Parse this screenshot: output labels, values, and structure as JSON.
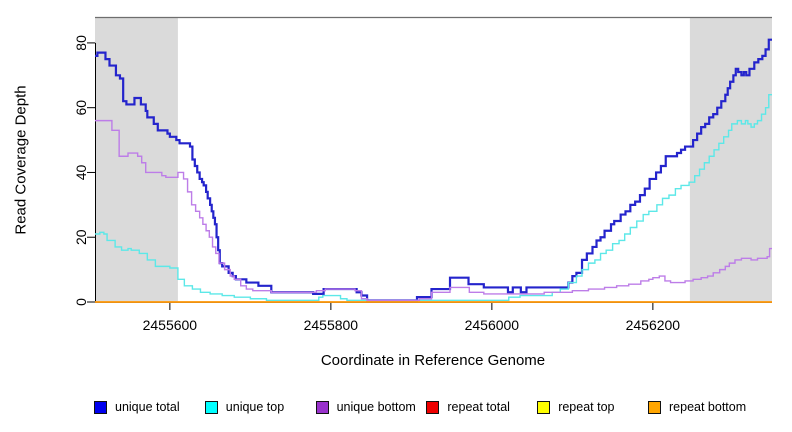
{
  "chart_data": {
    "type": "line",
    "subtype": "step-after-coverage-plot",
    "title": "",
    "xlabel": "Coordinate in Reference Genome",
    "ylabel": "Read Coverage Depth",
    "xlim": [
      2455507,
      2456348
    ],
    "ylim": [
      0,
      88
    ],
    "x_ticks": [
      2455600,
      2455800,
      2456000,
      2456200
    ],
    "y_ticks": [
      0,
      20,
      40,
      60,
      80
    ],
    "grid": false,
    "legend_position": "bottom",
    "shaded_regions": [
      {
        "from": 2455507,
        "to": 2455610,
        "color": "#dadada"
      },
      {
        "from": 2456246,
        "to": 2456348,
        "color": "#dadada"
      }
    ],
    "series": [
      {
        "name": "unique total",
        "swatch": "#0000ee",
        "line_color": "#2424cc",
        "line_width": 2.2,
        "points": [
          [
            2455507,
            76
          ],
          [
            2455510,
            77
          ],
          [
            2455520,
            75
          ],
          [
            2455525,
            73
          ],
          [
            2455533,
            70
          ],
          [
            2455538,
            69
          ],
          [
            2455542,
            62
          ],
          [
            2455546,
            61
          ],
          [
            2455556,
            63
          ],
          [
            2455564,
            61
          ],
          [
            2455570,
            59
          ],
          [
            2455572,
            57
          ],
          [
            2455580,
            55
          ],
          [
            2455585,
            53
          ],
          [
            2455597,
            52
          ],
          [
            2455600,
            51
          ],
          [
            2455608,
            50
          ],
          [
            2455612,
            49
          ],
          [
            2455625,
            48
          ],
          [
            2455628,
            44
          ],
          [
            2455631,
            42
          ],
          [
            2455634,
            40
          ],
          [
            2455637,
            38
          ],
          [
            2455640,
            37
          ],
          [
            2455642,
            36
          ],
          [
            2455645,
            34
          ],
          [
            2455647,
            32
          ],
          [
            2455650,
            30
          ],
          [
            2455652,
            28
          ],
          [
            2455654,
            26
          ],
          [
            2455656,
            24
          ],
          [
            2455658,
            20
          ],
          [
            2455660,
            16
          ],
          [
            2455662,
            12
          ],
          [
            2455665,
            11
          ],
          [
            2455673,
            9
          ],
          [
            2455678,
            8
          ],
          [
            2455682,
            7
          ],
          [
            2455695,
            6
          ],
          [
            2455710,
            5
          ],
          [
            2455726,
            3
          ],
          [
            2455778,
            2.5
          ],
          [
            2455791,
            4
          ],
          [
            2455832,
            3
          ],
          [
            2455838,
            2
          ],
          [
            2455845,
            0.5
          ],
          [
            2455907,
            1.5
          ],
          [
            2455925,
            4
          ],
          [
            2455948,
            7.5
          ],
          [
            2455971,
            5.5
          ],
          [
            2455990,
            4.5
          ],
          [
            2456020,
            3
          ],
          [
            2456026,
            4.5
          ],
          [
            2456036,
            3
          ],
          [
            2456043,
            4.5
          ],
          [
            2456095,
            6
          ],
          [
            2456100,
            8
          ],
          [
            2456105,
            9
          ],
          [
            2456112,
            13
          ],
          [
            2456118,
            15
          ],
          [
            2456125,
            17
          ],
          [
            2456130,
            19
          ],
          [
            2456135,
            20
          ],
          [
            2456140,
            22
          ],
          [
            2456148,
            24
          ],
          [
            2456152,
            25
          ],
          [
            2456160,
            27
          ],
          [
            2456166,
            28
          ],
          [
            2456172,
            30
          ],
          [
            2456178,
            31
          ],
          [
            2456184,
            33
          ],
          [
            2456190,
            35
          ],
          [
            2456196,
            38
          ],
          [
            2456204,
            40
          ],
          [
            2456210,
            42
          ],
          [
            2456216,
            45
          ],
          [
            2456230,
            46
          ],
          [
            2456235,
            47
          ],
          [
            2456240,
            48
          ],
          [
            2456250,
            50
          ],
          [
            2456255,
            52
          ],
          [
            2456260,
            54
          ],
          [
            2456265,
            55
          ],
          [
            2456270,
            57
          ],
          [
            2456275,
            58
          ],
          [
            2456280,
            60
          ],
          [
            2456285,
            62
          ],
          [
            2456290,
            64
          ],
          [
            2456293,
            66
          ],
          [
            2456296,
            68
          ],
          [
            2456300,
            70
          ],
          [
            2456303,
            72
          ],
          [
            2456306,
            71
          ],
          [
            2456310,
            70
          ],
          [
            2456313,
            71
          ],
          [
            2456316,
            70
          ],
          [
            2456320,
            72
          ],
          [
            2456326,
            74
          ],
          [
            2456331,
            75
          ],
          [
            2456336,
            76
          ],
          [
            2456340,
            78
          ],
          [
            2456344,
            81
          ]
        ]
      },
      {
        "name": "unique top",
        "swatch": "#00ffff",
        "line_color": "#5ce8e8",
        "line_width": 1.4,
        "points": [
          [
            2455507,
            21
          ],
          [
            2455513,
            21.5
          ],
          [
            2455518,
            21
          ],
          [
            2455522,
            19
          ],
          [
            2455532,
            17
          ],
          [
            2455540,
            16
          ],
          [
            2455548,
            16.5
          ],
          [
            2455552,
            16
          ],
          [
            2455562,
            15
          ],
          [
            2455572,
            13
          ],
          [
            2455582,
            11
          ],
          [
            2455600,
            10.5
          ],
          [
            2455610,
            7
          ],
          [
            2455618,
            5
          ],
          [
            2455628,
            4
          ],
          [
            2455638,
            3
          ],
          [
            2455650,
            2.5
          ],
          [
            2455665,
            2
          ],
          [
            2455680,
            1.5
          ],
          [
            2455700,
            1
          ],
          [
            2455720,
            0.5
          ],
          [
            2455785,
            1.5
          ],
          [
            2455790,
            2
          ],
          [
            2455812,
            1
          ],
          [
            2455820,
            0.5
          ],
          [
            2456021,
            1.5
          ],
          [
            2456035,
            2
          ],
          [
            2456075,
            3
          ],
          [
            2456085,
            4
          ],
          [
            2456095,
            6
          ],
          [
            2456105,
            8
          ],
          [
            2456112,
            10
          ],
          [
            2456120,
            12
          ],
          [
            2456128,
            13
          ],
          [
            2456135,
            15
          ],
          [
            2456142,
            16
          ],
          [
            2456150,
            18
          ],
          [
            2456158,
            19
          ],
          [
            2456165,
            21
          ],
          [
            2456172,
            23
          ],
          [
            2456180,
            25
          ],
          [
            2456188,
            27
          ],
          [
            2456195,
            28
          ],
          [
            2456205,
            30
          ],
          [
            2456212,
            32
          ],
          [
            2456220,
            33
          ],
          [
            2456228,
            35
          ],
          [
            2456235,
            36
          ],
          [
            2456245,
            37
          ],
          [
            2456252,
            39
          ],
          [
            2456258,
            41
          ],
          [
            2456264,
            43
          ],
          [
            2456270,
            45
          ],
          [
            2456276,
            47
          ],
          [
            2456282,
            49
          ],
          [
            2456288,
            51
          ],
          [
            2456294,
            53
          ],
          [
            2456298,
            55
          ],
          [
            2456305,
            56
          ],
          [
            2456310,
            55
          ],
          [
            2456315,
            56
          ],
          [
            2456318,
            55
          ],
          [
            2456322,
            54
          ],
          [
            2456326,
            55
          ],
          [
            2456330,
            56
          ],
          [
            2456335,
            58
          ],
          [
            2456340,
            60
          ],
          [
            2456344,
            64
          ]
        ]
      },
      {
        "name": "unique bottom",
        "swatch": "#9932cc",
        "line_color": "#bd7de8",
        "line_width": 1.4,
        "points": [
          [
            2455507,
            56
          ],
          [
            2455528,
            53
          ],
          [
            2455537,
            45
          ],
          [
            2455548,
            46
          ],
          [
            2455560,
            45
          ],
          [
            2455565,
            43
          ],
          [
            2455570,
            40
          ],
          [
            2455590,
            39
          ],
          [
            2455595,
            38.5
          ],
          [
            2455610,
            40
          ],
          [
            2455617,
            38
          ],
          [
            2455622,
            34
          ],
          [
            2455627,
            30
          ],
          [
            2455632,
            28
          ],
          [
            2455637,
            26
          ],
          [
            2455641,
            24
          ],
          [
            2455645,
            22
          ],
          [
            2455649,
            20
          ],
          [
            2455653,
            17
          ],
          [
            2455657,
            15
          ],
          [
            2455661,
            12
          ],
          [
            2455668,
            10
          ],
          [
            2455675,
            8
          ],
          [
            2455680,
            7
          ],
          [
            2455688,
            5
          ],
          [
            2455695,
            4
          ],
          [
            2455703,
            3.5
          ],
          [
            2455726,
            3
          ],
          [
            2455782,
            3.5
          ],
          [
            2455793,
            4
          ],
          [
            2455830,
            3.5
          ],
          [
            2455838,
            1
          ],
          [
            2455845,
            0.5
          ],
          [
            2455910,
            1
          ],
          [
            2455925,
            3
          ],
          [
            2455948,
            4.5
          ],
          [
            2455972,
            3
          ],
          [
            2455990,
            2.5
          ],
          [
            2456055,
            2.5
          ],
          [
            2456065,
            3
          ],
          [
            2456100,
            3.5
          ],
          [
            2456120,
            4
          ],
          [
            2456140,
            4.5
          ],
          [
            2456155,
            5
          ],
          [
            2456170,
            5.5
          ],
          [
            2456185,
            6.5
          ],
          [
            2456195,
            7
          ],
          [
            2456200,
            7.5
          ],
          [
            2456208,
            8
          ],
          [
            2456215,
            6.5
          ],
          [
            2456222,
            6
          ],
          [
            2456240,
            6.5
          ],
          [
            2456250,
            7
          ],
          [
            2456260,
            7.5
          ],
          [
            2456268,
            8
          ],
          [
            2456275,
            9
          ],
          [
            2456283,
            10
          ],
          [
            2456290,
            11
          ],
          [
            2456295,
            12
          ],
          [
            2456302,
            13
          ],
          [
            2456310,
            13.5
          ],
          [
            2456322,
            13
          ],
          [
            2456330,
            13.5
          ],
          [
            2456342,
            14
          ],
          [
            2456345,
            16.5
          ]
        ]
      },
      {
        "name": "repeat total",
        "swatch": "#ee0000",
        "line_color": "#dd0000",
        "line_width": 1.2,
        "points": [
          [
            2455507,
            0
          ],
          [
            2456348,
            0
          ]
        ]
      },
      {
        "name": "repeat top",
        "swatch": "#ffff00",
        "line_color": "#ffff00",
        "line_width": 1.2,
        "points": [
          [
            2455507,
            0
          ],
          [
            2456348,
            0
          ]
        ]
      },
      {
        "name": "repeat bottom",
        "swatch": "#ffa500",
        "line_color": "#ff9d14",
        "line_width": 1.7,
        "points": [
          [
            2455507,
            0
          ],
          [
            2456348,
            0
          ]
        ]
      }
    ]
  },
  "labels": {
    "ylabel": "Read Coverage Depth",
    "xlabel": "Coordinate in Reference Genome"
  },
  "legend": {
    "items": [
      "unique total",
      "unique top",
      "unique bottom",
      "repeat total",
      "repeat top",
      "repeat bottom"
    ]
  }
}
